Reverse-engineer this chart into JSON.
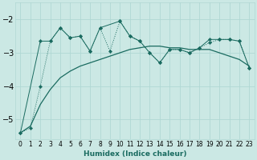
{
  "xlabel": "Humidex (Indice chaleur)",
  "bg_color": "#cbe8e4",
  "grid_color": "#b0d8d4",
  "line_color": "#1a6b60",
  "ylim": [
    -5.6,
    -1.5
  ],
  "xlim": [
    -0.5,
    23.5
  ],
  "yticks": [
    -5,
    -4,
    -3,
    -2
  ],
  "xticks": [
    0,
    1,
    2,
    3,
    4,
    5,
    6,
    7,
    8,
    9,
    10,
    11,
    12,
    13,
    14,
    15,
    16,
    17,
    18,
    19,
    20,
    21,
    22,
    23
  ],
  "series_dotted_x": [
    0,
    1,
    2,
    3,
    4,
    5,
    6,
    7,
    8,
    9,
    10,
    11,
    12,
    13,
    14,
    15,
    16,
    17,
    18,
    19,
    20,
    21,
    22,
    23
  ],
  "series_dotted_y": [
    -5.4,
    -5.25,
    -4.0,
    -2.65,
    -2.25,
    -2.55,
    -2.5,
    -2.95,
    -2.25,
    -2.95,
    -2.05,
    -2.5,
    -2.65,
    -3.0,
    -3.3,
    -2.9,
    -2.9,
    -3.0,
    -2.85,
    -2.7,
    -2.6,
    -2.6,
    -2.65,
    -3.45
  ],
  "series_smooth_x": [
    0,
    1,
    2,
    3,
    4,
    5,
    6,
    7,
    8,
    9,
    10,
    11,
    12,
    13,
    14,
    15,
    16,
    17,
    18,
    19,
    20,
    21,
    22,
    23
  ],
  "series_smooth_y": [
    -5.4,
    -5.2,
    -4.55,
    -4.1,
    -3.75,
    -3.55,
    -3.4,
    -3.3,
    -3.2,
    -3.1,
    -3.0,
    -2.9,
    -2.85,
    -2.8,
    -2.8,
    -2.85,
    -2.85,
    -2.9,
    -2.9,
    -2.9,
    -3.0,
    -3.1,
    -3.2,
    -3.4
  ],
  "series_marked_x": [
    0,
    2,
    3,
    4,
    5,
    6,
    7,
    8,
    10,
    11,
    12,
    13,
    14,
    15,
    16,
    17,
    18,
    19,
    20,
    21,
    22,
    23
  ],
  "series_marked_y": [
    -5.4,
    -2.65,
    -2.65,
    -2.25,
    -2.55,
    -2.5,
    -2.95,
    -2.25,
    -2.05,
    -2.5,
    -2.65,
    -3.0,
    -3.3,
    -2.9,
    -2.9,
    -3.0,
    -2.85,
    -2.6,
    -2.6,
    -2.6,
    -2.65,
    -3.45
  ]
}
